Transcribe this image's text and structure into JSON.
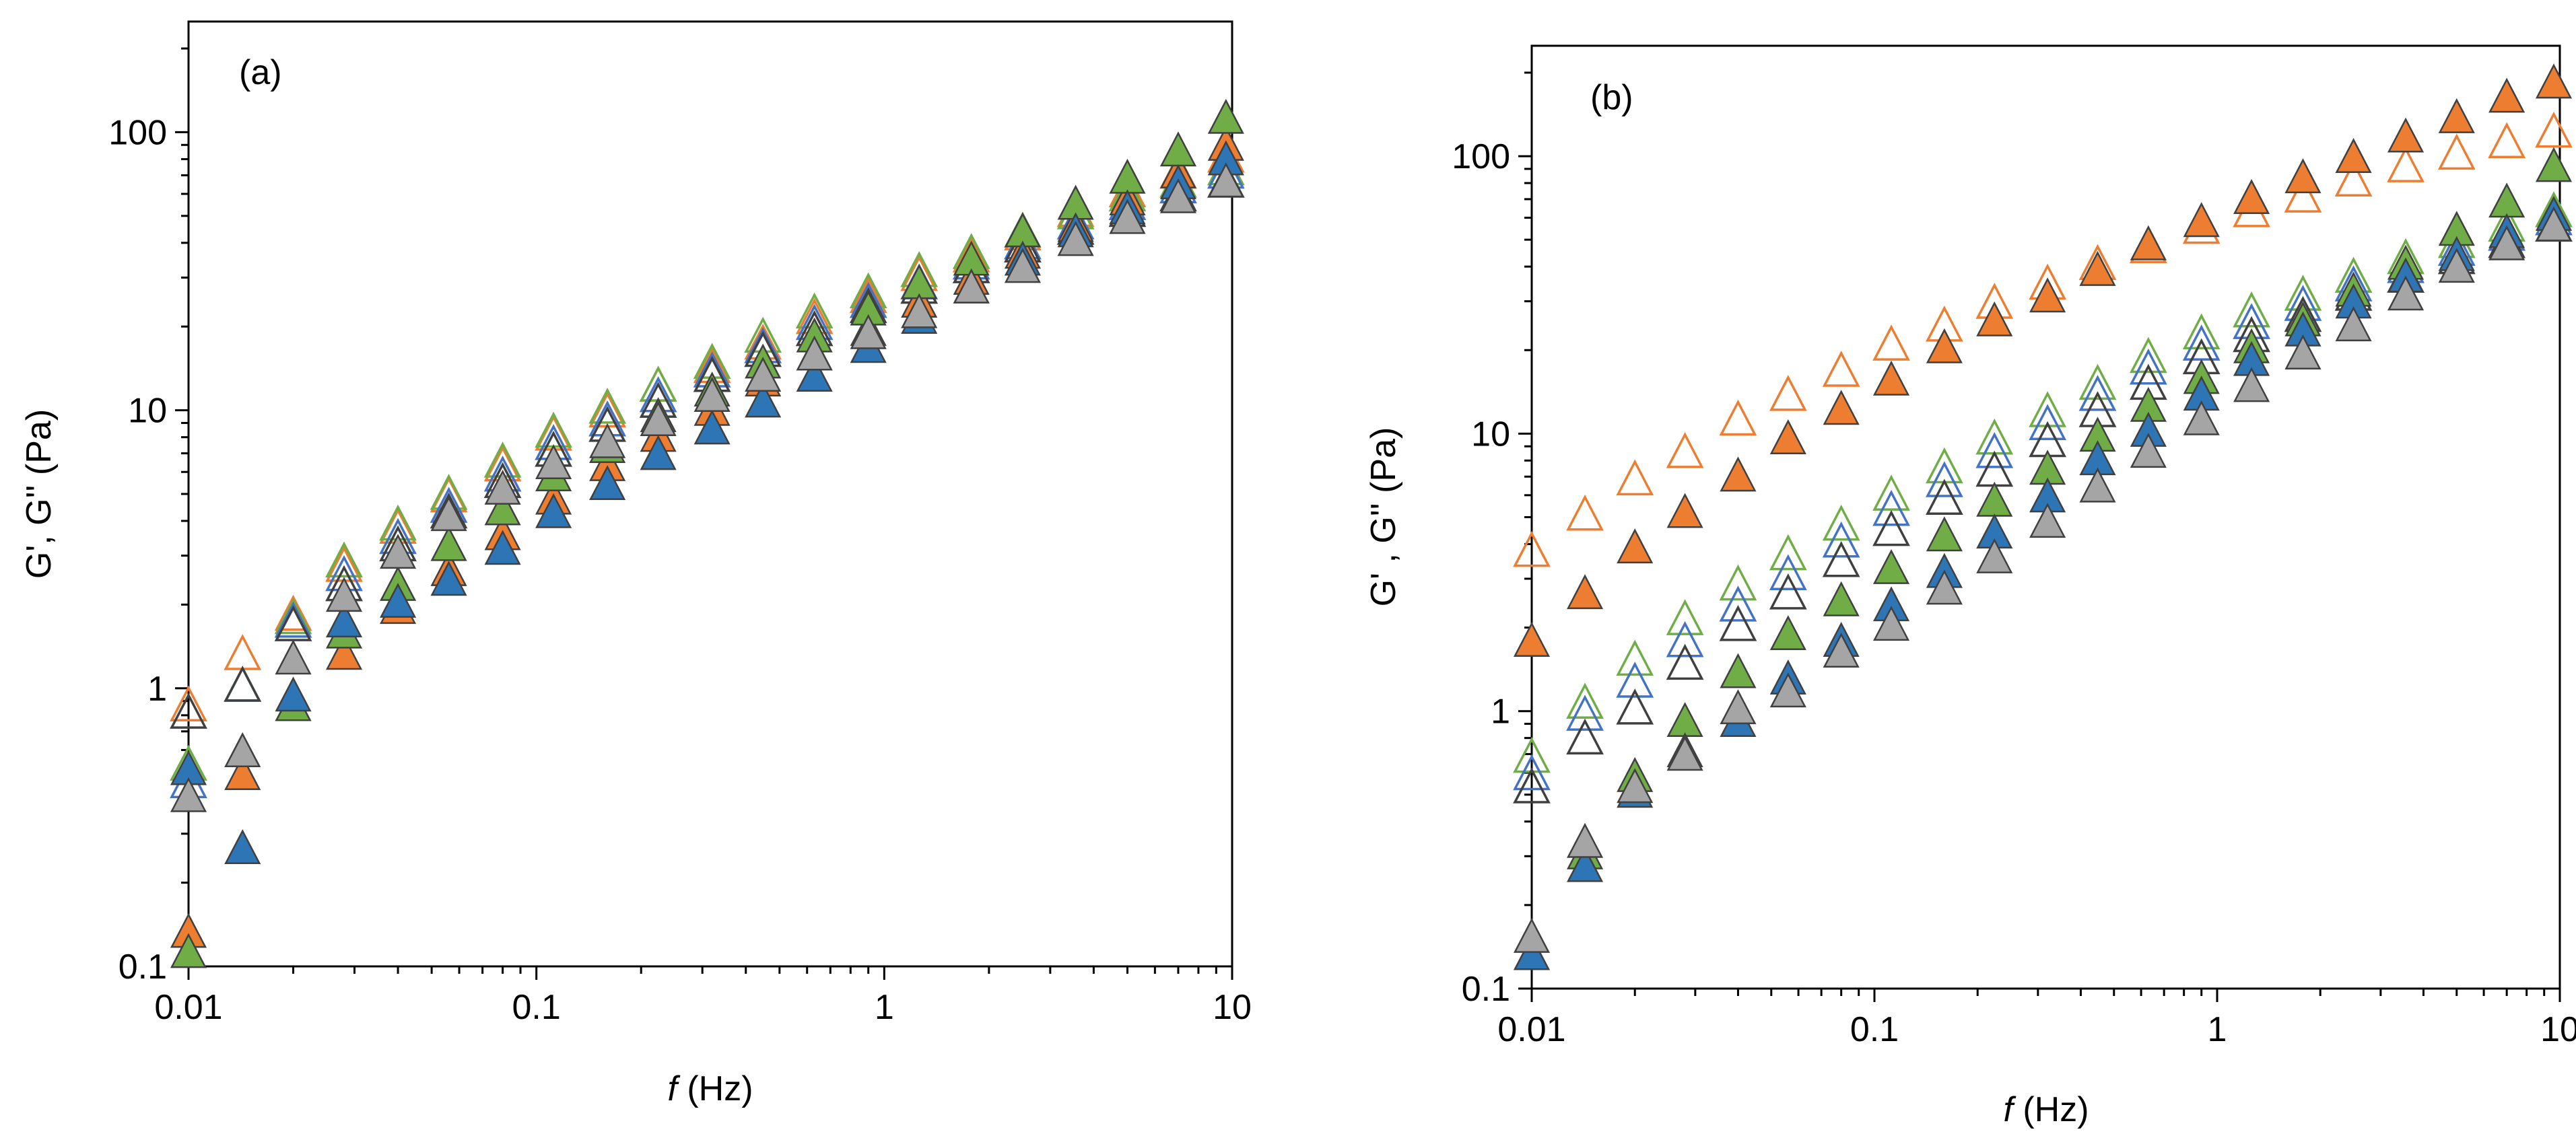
{
  "chart_data": [
    {
      "type": "scatter",
      "panel_label": "(a)",
      "xlabel_italic": "f",
      "xlabel_rest": " (Hz)",
      "ylabel": "G', G'' (Pa)",
      "x_scale": "log",
      "y_scale": "log",
      "xlim": [
        0.01,
        10
      ],
      "ylim": [
        0.1,
        250
      ],
      "x_ticks": [
        "0.01",
        "0.1",
        "1",
        "10"
      ],
      "y_ticks": [
        "0.1",
        "1",
        "10",
        "100"
      ],
      "grid": false,
      "legend": "none",
      "x": [
        0.01,
        0.0143,
        0.02,
        0.028,
        0.04,
        0.056,
        0.08,
        0.112,
        0.16,
        0.224,
        0.32,
        0.448,
        0.63,
        0.9,
        1.26,
        1.78,
        2.5,
        3.55,
        5.0,
        7.0,
        9.6
      ],
      "series": [
        {
          "marker": "open",
          "color": "#ED7D31",
          "values": [
            0.85,
            1.3,
            1.8,
            2.7,
            3.7,
            4.8,
            6.2,
            8.0,
            9.7,
            12.0,
            14.0,
            17.0,
            21.0,
            25.0,
            30.0,
            35.0,
            42.0,
            51.0,
            60.0,
            70.0,
            80.0
          ]
        },
        {
          "marker": "open",
          "color": "#70AD47",
          "values": [
            0.52,
            1.0,
            1.75,
            2.8,
            3.8,
            4.9,
            6.4,
            8.2,
            10.0,
            12.0,
            14.5,
            18.0,
            22.0,
            26.0,
            31.0,
            36.0,
            43.0,
            50.0,
            58.0,
            65.0,
            72.0
          ]
        },
        {
          "marker": "open",
          "color": "#4472C4",
          "values": [
            0.45,
            1.0,
            1.7,
            2.5,
            3.4,
            4.4,
            5.7,
            7.4,
            9.0,
            11.0,
            13.5,
            16.5,
            20.0,
            24.0,
            28.0,
            33.0,
            39.0,
            46.0,
            54.0,
            62.0,
            70.0
          ]
        },
        {
          "marker": "open",
          "color": "#404040",
          "values": [
            0.8,
            1.0,
            1.65,
            2.3,
            3.2,
            4.2,
            5.4,
            7.0,
            8.6,
            10.5,
            13.0,
            16.0,
            19.0,
            23.0,
            27.0,
            32.0,
            38.0,
            44.0,
            51.0,
            58.0,
            65.0
          ]
        },
        {
          "marker": "filled",
          "color": "#ED7D31",
          "values": [
            0.13,
            0.48,
            0.85,
            1.3,
            1.9,
            2.6,
            3.5,
            4.7,
            6.2,
            7.9,
            9.8,
            12.5,
            15.5,
            19.0,
            24.0,
            29.0,
            36.0,
            45.0,
            56.0,
            70.0,
            88.0
          ]
        },
        {
          "marker": "filled",
          "color": "#70AD47",
          "values": [
            0.11,
            0.58,
            0.85,
            1.55,
            2.3,
            3.2,
            4.3,
            5.7,
            7.2,
            9.3,
            11.5,
            14.5,
            18.0,
            22.5,
            28.0,
            34.0,
            43.0,
            54.0,
            67.0,
            84.0,
            110.0
          ]
        },
        {
          "marker": "filled",
          "color": "#2E75B6",
          "values": [
            0.5,
            0.26,
            0.92,
            1.7,
            2.0,
            2.4,
            3.1,
            4.2,
            5.3,
            6.8,
            8.4,
            10.5,
            13.0,
            16.5,
            21.0,
            27.0,
            34.0,
            43.0,
            52.0,
            64.0,
            78.0
          ]
        },
        {
          "marker": "filled",
          "color": "#A5A5A5",
          "values": [
            0.4,
            0.58,
            1.25,
            2.1,
            3.0,
            4.1,
            5.1,
            6.3,
            7.5,
            9.0,
            11.0,
            13.0,
            15.5,
            18.5,
            22.0,
            27.0,
            32.0,
            40.0,
            48.0,
            57.0,
            65.0
          ]
        }
      ]
    },
    {
      "type": "scatter",
      "panel_label": "(b)",
      "xlabel_italic": "f",
      "xlabel_rest": " (Hz)",
      "ylabel": "G' , G'' (Pa)",
      "x_scale": "log",
      "y_scale": "log",
      "xlim": [
        0.01,
        10
      ],
      "ylim": [
        0.1,
        250
      ],
      "x_ticks": [
        "0.01",
        "0.1",
        "1",
        "10"
      ],
      "y_ticks": [
        "0.1",
        "1",
        "10",
        "100"
      ],
      "grid": false,
      "legend": "none",
      "x": [
        0.01,
        0.0143,
        0.02,
        0.028,
        0.04,
        0.056,
        0.08,
        0.112,
        0.16,
        0.224,
        0.32,
        0.448,
        0.63,
        0.9,
        1.26,
        1.78,
        2.5,
        3.55,
        5.0,
        7.0,
        9.6
      ],
      "series": [
        {
          "marker": "open",
          "color": "#ED7D31",
          "values": [
            3.7,
            5.0,
            6.7,
            8.4,
            11.0,
            13.5,
            16.5,
            20.5,
            24.0,
            29.0,
            34.0,
            40.0,
            46.0,
            54.0,
            62.0,
            70.0,
            80.0,
            90.0,
            100.0,
            110.0,
            120.0
          ]
        },
        {
          "marker": "open",
          "color": "#70AD47",
          "values": [
            0.67,
            1.05,
            1.5,
            2.1,
            2.8,
            3.6,
            4.6,
            5.9,
            7.4,
            9.4,
            11.8,
            14.8,
            18.5,
            22.5,
            27.0,
            31.0,
            36.0,
            42.0,
            48.0,
            55.0,
            62.0
          ]
        },
        {
          "marker": "open",
          "color": "#4472C4",
          "values": [
            0.58,
            0.95,
            1.25,
            1.75,
            2.35,
            3.05,
            4.0,
            5.2,
            6.6,
            8.4,
            10.6,
            13.5,
            16.8,
            20.5,
            24.5,
            28.5,
            33.5,
            39.0,
            45.0,
            51.0,
            58.0
          ]
        },
        {
          "marker": "open",
          "color": "#404040",
          "values": [
            0.52,
            0.78,
            1.0,
            1.45,
            2.0,
            2.6,
            3.4,
            4.4,
            5.7,
            7.2,
            9.2,
            11.8,
            14.8,
            18.3,
            22.0,
            26.0,
            31.0,
            36.0,
            42.0,
            48.0,
            55.0
          ]
        },
        {
          "marker": "filled",
          "color": "#ED7D31",
          "values": [
            1.75,
            2.6,
            3.8,
            5.1,
            6.9,
            9.4,
            12.0,
            15.3,
            20.0,
            25.0,
            30.5,
            38.0,
            47.0,
            57.0,
            69.0,
            82.0,
            97.0,
            115.0,
            135.0,
            160.0,
            180.0
          ]
        },
        {
          "marker": "filled",
          "color": "#70AD47",
          "values": [
            0.13,
            0.3,
            0.57,
            0.9,
            1.35,
            1.85,
            2.45,
            3.2,
            4.2,
            5.6,
            7.3,
            9.6,
            12.3,
            15.5,
            20.0,
            25.0,
            32.0,
            40.0,
            53.0,
            67.0,
            90.0
          ]
        },
        {
          "marker": "filled",
          "color": "#2E75B6",
          "values": [
            0.13,
            0.27,
            0.5,
            0.7,
            0.9,
            1.28,
            1.75,
            2.35,
            3.1,
            4.3,
            5.8,
            7.9,
            10.0,
            13.5,
            18.0,
            23.0,
            29.0,
            36.0,
            43.0,
            52.0,
            60.0
          ]
        },
        {
          "marker": "filled",
          "color": "#A5A5A5",
          "values": [
            0.15,
            0.33,
            0.52,
            0.68,
            1.0,
            1.15,
            1.6,
            2.0,
            2.7,
            3.5,
            4.7,
            6.3,
            8.4,
            11.0,
            14.5,
            19.0,
            24.0,
            31.0,
            39.0,
            47.0,
            55.0
          ]
        }
      ]
    }
  ]
}
